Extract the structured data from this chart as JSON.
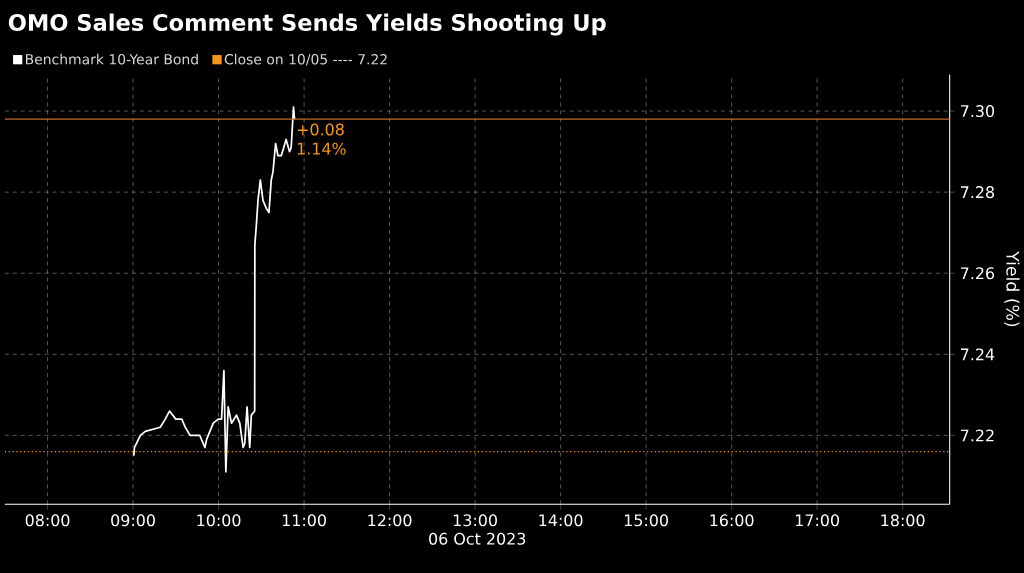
{
  "chart_data": {
    "type": "line",
    "title": "OMO Sales Comment Sends Yields Shooting Up",
    "xlabel": "06 Oct 2023",
    "ylabel": "Yield (%)",
    "x": [
      9.008,
      9.016,
      9.085,
      9.143,
      9.318,
      9.376,
      9.426,
      9.5,
      9.57,
      9.61,
      9.667,
      9.78,
      9.84,
      9.86,
      9.938,
      9.996,
      10.035,
      10.062,
      10.085,
      10.112,
      10.151,
      10.209,
      10.248,
      10.287,
      10.306,
      10.333,
      10.364,
      10.383,
      10.422,
      10.424,
      10.442,
      10.461,
      10.488,
      10.519,
      10.558,
      10.589,
      10.616,
      10.636,
      10.667,
      10.694,
      10.733,
      10.79,
      10.829,
      10.849,
      10.876,
      10.888
    ],
    "series": [
      {
        "name": "Benchmark 10-Year Bond",
        "color": "#ffffff",
        "values": [
          7.215,
          7.217,
          7.22,
          7.221,
          7.222,
          7.224,
          7.226,
          7.224,
          7.224,
          7.222,
          7.22,
          7.22,
          7.217,
          7.219,
          7.223,
          7.224,
          7.224,
          7.236,
          7.211,
          7.227,
          7.223,
          7.225,
          7.223,
          7.217,
          7.218,
          7.227,
          7.217,
          7.225,
          7.226,
          7.267,
          7.272,
          7.278,
          7.283,
          7.278,
          7.276,
          7.275,
          7.283,
          7.285,
          7.292,
          7.289,
          7.289,
          7.293,
          7.29,
          7.291,
          7.301,
          7.298
        ]
      }
    ],
    "xlim": [
      7.5,
      18.55
    ],
    "ylim": [
      7.203,
      7.309
    ],
    "xticks": [
      {
        "value": 8,
        "label": "08:00"
      },
      {
        "value": 9,
        "label": "09:00"
      },
      {
        "value": 10,
        "label": "10:00"
      },
      {
        "value": 11,
        "label": "11:00"
      },
      {
        "value": 12,
        "label": "12:00"
      },
      {
        "value": 13,
        "label": "13:00"
      },
      {
        "value": 14,
        "label": "14:00"
      },
      {
        "value": 15,
        "label": "15:00"
      },
      {
        "value": 16,
        "label": "16:00"
      },
      {
        "value": 17,
        "label": "17:00"
      },
      {
        "value": 18,
        "label": "18:00"
      }
    ],
    "yticks": [
      {
        "value": 7.22,
        "label": "7.22"
      },
      {
        "value": 7.24,
        "label": "7.24"
      },
      {
        "value": 7.26,
        "label": "7.26"
      },
      {
        "value": 7.28,
        "label": "7.28"
      },
      {
        "value": 7.3,
        "label": "7.30"
      }
    ],
    "ref_lines": [
      {
        "axis": "y",
        "value": 7.216,
        "label": "Close on 10/05 ---- 7.22",
        "color": "#f7941d",
        "line_style": "dotted"
      },
      {
        "axis": "y",
        "value": 7.298,
        "color": "#c8682c",
        "line_style": "solid"
      }
    ],
    "annotations": [
      {
        "text": "+0.08",
        "x": 10.888,
        "y": 7.298
      },
      {
        "text": "1.14%",
        "x": 10.888,
        "y": 7.298
      }
    ],
    "grid": true,
    "legend": "top left",
    "line_style": "solid",
    "marker": "none"
  }
}
